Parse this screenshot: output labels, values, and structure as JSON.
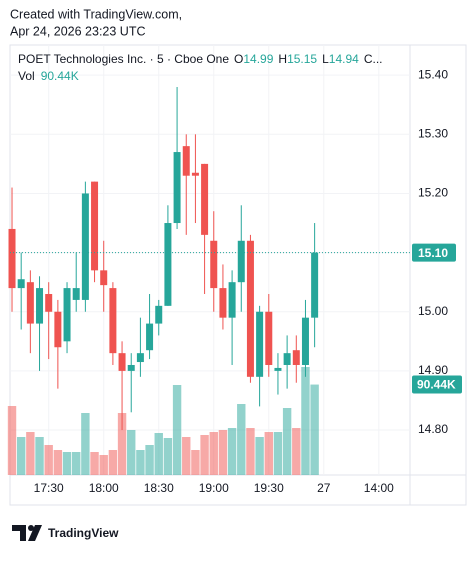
{
  "header": {
    "line1": "Created with TradingView.com,",
    "line2": "Apr 24, 2026 23:23 UTC"
  },
  "chart_data": {
    "type": "candlestick",
    "legend": {
      "symbol": "POET Technologies Inc. · 5 · Cboe One",
      "open_label": "O",
      "high_label": "H",
      "low_label": "L",
      "close_label": "C...",
      "volume_label": "Vol",
      "volume_value_label": "90.44K"
    },
    "x": [
      0,
      1,
      2,
      3,
      4,
      5,
      6,
      7,
      8,
      9,
      10,
      11,
      12,
      13,
      14,
      15,
      16,
      17,
      18,
      19,
      20,
      21,
      22,
      23,
      24,
      25,
      26,
      27,
      28,
      29,
      30,
      31,
      32,
      33
    ],
    "open": [
      15.14,
      15.04,
      15.05,
      14.98,
      15.03,
      15.0,
      14.95,
      15.02,
      15.02,
      15.22,
      15.07,
      15.04,
      14.93,
      14.9,
      14.915,
      14.935,
      14.98,
      15.01,
      15.15,
      15.28,
      15.235,
      15.25,
      15.12,
      15.04,
      14.99,
      15.05,
      15.12,
      14.89,
      15.0,
      14.9,
      14.91,
      14.935,
      14.91,
      14.99
    ],
    "high": [
      15.21,
      15.1,
      15.07,
      15.06,
      15.05,
      15.02,
      15.05,
      15.1,
      15.22,
      15.22,
      15.12,
      15.05,
      14.95,
      14.93,
      14.99,
      15.03,
      15.02,
      15.18,
      15.38,
      15.3,
      15.3,
      15.25,
      15.17,
      15.08,
      15.07,
      15.18,
      15.13,
      15.01,
      15.03,
      14.93,
      14.96,
      14.96,
      15.02,
      15.15
    ],
    "low": [
      15.0,
      14.97,
      14.93,
      14.9,
      14.92,
      14.87,
      14.93,
      15.0,
      15.0,
      15.05,
      15.0,
      14.91,
      14.8,
      14.83,
      14.89,
      14.92,
      14.96,
      15.01,
      15.14,
      15.13,
      15.15,
      15.03,
      15.0,
      14.97,
      14.91,
      15.0,
      14.88,
      14.84,
      14.89,
      14.86,
      14.87,
      14.88,
      14.89,
      14.94
    ],
    "close": [
      15.04,
      15.055,
      14.98,
      15.04,
      15.0,
      14.94,
      15.04,
      15.04,
      15.2,
      15.07,
      15.045,
      14.93,
      14.9,
      14.91,
      14.93,
      14.98,
      15.01,
      15.15,
      15.27,
      15.23,
      15.23,
      15.13,
      15.04,
      14.99,
      15.05,
      15.12,
      14.89,
      15.0,
      14.91,
      14.905,
      14.93,
      14.91,
      14.99,
      15.1
    ],
    "volume": [
      69000,
      38000,
      43000,
      38000,
      30000,
      25000,
      23000,
      23000,
      62000,
      23000,
      20000,
      25000,
      62000,
      45000,
      25000,
      30000,
      42000,
      37000,
      90000,
      38000,
      25000,
      40000,
      43000,
      45000,
      47000,
      71000,
      47000,
      38000,
      43000,
      43000,
      67000,
      47000,
      108000,
      90440
    ],
    "last_price_label": "15.10",
    "up_color": "#26a69a",
    "down_color": "#ef5350",
    "xlim": [
      -0.22,
      43.4
    ],
    "xticks": [
      {
        "value": 4,
        "label": "17:30"
      },
      {
        "value": 10,
        "label": "18:00"
      },
      {
        "value": 16,
        "label": "18:30"
      },
      {
        "value": 22,
        "label": "19:00"
      },
      {
        "value": 28,
        "label": "19:30"
      },
      {
        "value": 34,
        "label": "27"
      },
      {
        "value": 40,
        "label": "14:00"
      }
    ],
    "ylim": [
      14.724,
      15.451
    ],
    "yticks": [
      {
        "value": 14.8,
        "label": "14.80"
      },
      {
        "value": 14.9,
        "label": "14.90"
      },
      {
        "value": 15.0,
        "label": "15.00"
      },
      {
        "value": 15.1,
        "label": "15.10"
      },
      {
        "value": 15.2,
        "label": "15.20"
      },
      {
        "value": 15.3,
        "label": "15.30"
      },
      {
        "value": 15.4,
        "label": "15.40"
      }
    ],
    "grid": true
  },
  "footer": {
    "brand": "TradingView"
  }
}
